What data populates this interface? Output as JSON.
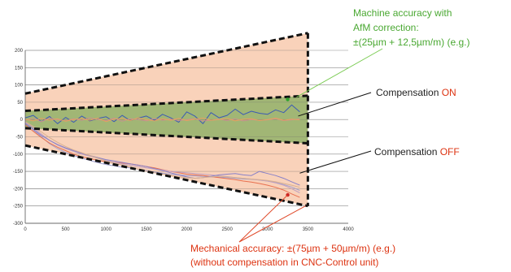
{
  "chart_data": {
    "type": "line",
    "title": "",
    "xlabel": "",
    "ylabel": "",
    "xlim": [
      0,
      4000
    ],
    "ylim": [
      -300,
      200
    ],
    "xticks": [
      0,
      500,
      1000,
      1500,
      2000,
      2500,
      3000,
      3500,
      4000
    ],
    "yticks": [
      200,
      150,
      100,
      50,
      0,
      -50,
      -100,
      -150,
      -200,
      -250,
      -300
    ],
    "grid": "horizontal",
    "bands": [
      {
        "name": "Mechanical accuracy",
        "x": [
          0,
          3500
        ],
        "upper": [
          75,
          250
        ],
        "lower": [
          -75,
          -250
        ],
        "color": "#f8cdb3"
      },
      {
        "name": "Machine accuracy with AfM correction",
        "x": [
          0,
          3500
        ],
        "upper": [
          25,
          68.75
        ],
        "lower": [
          -25,
          -68.75
        ],
        "color": "#92b268"
      }
    ],
    "series": [
      {
        "color": "#3c5ab4",
        "x": [
          0,
          100,
          200,
          300,
          400,
          500,
          600,
          700,
          800,
          900,
          1000,
          1100,
          1200,
          1300,
          1400,
          1500,
          1600,
          1700,
          1800,
          1900,
          2000,
          2100,
          2200,
          2300,
          2400,
          2500,
          2600,
          2700,
          2800,
          2900,
          3000,
          3100,
          3200,
          3300,
          3400
        ],
        "y": [
          5,
          12,
          -6,
          9,
          -12,
          6,
          -8,
          10,
          -4,
          3,
          8,
          -6,
          12,
          -3,
          4,
          10,
          -2,
          15,
          5,
          -8,
          22,
          10,
          -12,
          20,
          5,
          12,
          30,
          14,
          24,
          18,
          15,
          28,
          20,
          42,
          22
        ]
      },
      {
        "color": "#cc9090",
        "x": [
          0,
          100,
          200,
          300,
          400,
          500,
          600,
          700,
          800,
          900,
          1000,
          1100,
          1200,
          1300,
          1400,
          1500,
          1600,
          1700,
          1800,
          1900,
          2000,
          2100,
          2200,
          2300,
          2400,
          2500,
          2600,
          2700,
          2800,
          2900,
          3000,
          3100,
          3200,
          3300,
          3400
        ],
        "y": [
          -2,
          3,
          -6,
          4,
          0,
          -4,
          2,
          -2,
          5,
          0,
          -3,
          4,
          -5,
          2,
          0,
          -4,
          3,
          -2,
          1,
          -3,
          0,
          2,
          -4,
          -2,
          1,
          -3,
          2,
          -4,
          0,
          -2,
          -1,
          2,
          -3,
          -1,
          2
        ]
      },
      {
        "color": "#e8a060",
        "x": [
          0,
          100,
          200,
          300,
          400,
          500,
          600,
          700,
          800,
          900,
          1000,
          1100,
          1200,
          1300,
          1400,
          1500,
          1600,
          1700,
          1800,
          1900,
          2000,
          2100,
          2200,
          2300,
          2400,
          2500,
          2600,
          2700,
          2800,
          2900,
          3000,
          3100,
          3200,
          3300,
          3400
        ],
        "y": [
          1,
          -4,
          3,
          -2,
          2,
          -5,
          0,
          3,
          -2,
          4,
          -6,
          1,
          3,
          -3,
          5,
          0,
          -4,
          2,
          -2,
          3,
          -3,
          1,
          4,
          -2,
          0,
          3,
          -4,
          1,
          2,
          -3,
          0,
          4,
          -2,
          1,
          -1
        ]
      },
      {
        "color": "#a0a0d0",
        "x": [
          0,
          100,
          200,
          300,
          400,
          500,
          600,
          700,
          800,
          900,
          1000,
          1100,
          1200,
          1300,
          1400,
          1500,
          1600,
          1700,
          1800,
          1900,
          2000,
          2100,
          2200,
          2300,
          2400,
          2500,
          2600,
          2700,
          2800,
          2900,
          3000,
          3100,
          3200,
          3300,
          3400
        ],
        "y": [
          -10,
          -30,
          -50,
          -70,
          -84,
          -95,
          -104,
          -112,
          -118,
          -125,
          -130,
          -134,
          -138,
          -140,
          -144,
          -148,
          -152,
          -155,
          -158,
          -160,
          -162,
          -163,
          -164,
          -166,
          -167,
          -168,
          -170,
          -172,
          -173,
          -175,
          -178,
          -182,
          -188,
          -195,
          -205
        ]
      },
      {
        "color": "#e87050",
        "x": [
          0,
          100,
          200,
          300,
          400,
          500,
          600,
          700,
          800,
          900,
          1000,
          1100,
          1200,
          1300,
          1400,
          1500,
          1600,
          1700,
          1800,
          1900,
          2000,
          2100,
          2200,
          2300,
          2400,
          2500,
          2600,
          2700,
          2800,
          2900,
          3000,
          3100,
          3200,
          3300,
          3400
        ],
        "y": [
          -15,
          -34,
          -52,
          -68,
          -80,
          -90,
          -100,
          -108,
          -113,
          -118,
          -122,
          -124,
          -126,
          -128,
          -132,
          -136,
          -140,
          -145,
          -150,
          -154,
          -158,
          -160,
          -162,
          -165,
          -168,
          -171,
          -174,
          -178,
          -181,
          -185,
          -190,
          -196,
          -204,
          -215,
          -225
        ]
      },
      {
        "color": "#c0a0c0",
        "x": [
          0,
          100,
          200,
          300,
          400,
          500,
          600,
          700,
          800,
          900,
          1000,
          1100,
          1200,
          1300,
          1400,
          1500,
          1600,
          1700,
          1800,
          1900,
          2000,
          2100,
          2200,
          2300,
          2400,
          2500,
          2600,
          2700,
          2800,
          2900,
          3000,
          3100,
          3200,
          3300,
          3400
        ],
        "y": [
          -8,
          -24,
          -42,
          -60,
          -74,
          -84,
          -92,
          -100,
          -106,
          -112,
          -118,
          -124,
          -128,
          -132,
          -136,
          -140,
          -143,
          -146,
          -150,
          -152,
          -154,
          -156,
          -158,
          -160,
          -163,
          -165,
          -168,
          -170,
          -172,
          -175,
          -178,
          -183,
          -190,
          -200,
          -212
        ]
      },
      {
        "color": "#8880c8",
        "x": [
          0,
          100,
          200,
          300,
          400,
          500,
          600,
          700,
          800,
          900,
          1000,
          1100,
          1200,
          1300,
          1400,
          1500,
          1600,
          1700,
          1800,
          1900,
          2000,
          2100,
          2200,
          2300,
          2400,
          2500,
          2600,
          2700,
          2800,
          2900,
          3000,
          3100,
          3200,
          3300,
          3400
        ],
        "y": [
          -12,
          -28,
          -46,
          -60,
          -72,
          -82,
          -90,
          -98,
          -104,
          -110,
          -116,
          -120,
          -124,
          -128,
          -132,
          -136,
          -142,
          -148,
          -154,
          -160,
          -166,
          -170,
          -168,
          -164,
          -160,
          -158,
          -156,
          -160,
          -162,
          -150,
          -156,
          -162,
          -170,
          -180,
          -190
        ]
      },
      {
        "color": "#d8b090",
        "x": [
          0,
          100,
          200,
          300,
          400,
          500,
          600,
          700,
          800,
          900,
          1000,
          1100,
          1200,
          1300,
          1400,
          1500,
          1600,
          1700,
          1800,
          1900,
          2000,
          2100,
          2200,
          2300,
          2400,
          2500,
          2600,
          2700,
          2800,
          2900,
          3000,
          3100,
          3200,
          3300,
          3400
        ],
        "y": [
          -6,
          -20,
          -36,
          -52,
          -66,
          -78,
          -88,
          -96,
          -104,
          -112,
          -120,
          -126,
          -132,
          -138,
          -144,
          -150,
          -154,
          -158,
          -162,
          -165,
          -168,
          -170,
          -168,
          -166,
          -164,
          -166,
          -168,
          -170,
          -172,
          -174,
          -176,
          -180,
          -185,
          -190,
          -196
        ]
      }
    ],
    "markers": [
      {
        "label": "on",
        "x": 3250,
        "y": 58,
        "color": "#2ea32e"
      },
      {
        "label": "off",
        "x": 3250,
        "y": -218,
        "color": "#cc2222"
      }
    ]
  },
  "annotations": {
    "afm_line1": "Machine accuracy with",
    "afm_line2": "AfM correction:",
    "afm_line3": "±(25µm + 12,5µm/m) (e.g.)",
    "comp_on_prefix": "Compensation ",
    "comp_on_state": "ON",
    "comp_off_prefix": "Compensation ",
    "comp_off_state": "OFF",
    "mech_line1": "Mechanical accuracy: ±(75µm + 50µm/m) (e.g.)",
    "mech_line2": "(without compensation in CNC-Control unit)"
  },
  "colors": {
    "afm_text": "#4aa832",
    "mech_text": "#dd3311",
    "on_state": "#dd3311",
    "off_state": "#dd3311",
    "label_text": "#222222",
    "band_outer": "#f8cdb3",
    "band_inner": "#92b268"
  }
}
